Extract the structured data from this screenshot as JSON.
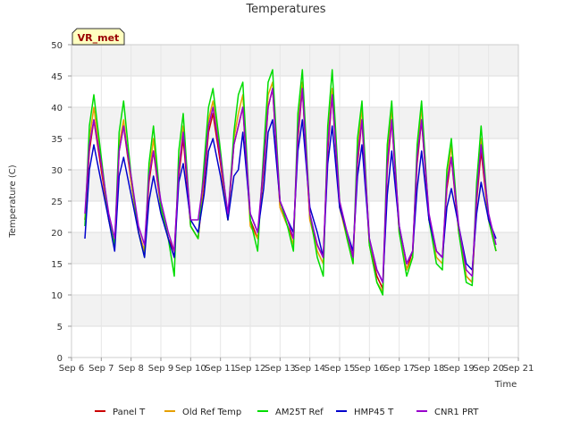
{
  "chart_data": {
    "type": "line",
    "title": "Temperatures",
    "xlabel": "Time",
    "ylabel": "Temperature (C)",
    "ylim": [
      0,
      50
    ],
    "yticks": [
      0,
      5,
      10,
      15,
      20,
      25,
      30,
      35,
      40,
      45,
      50
    ],
    "xlim": [
      6,
      21
    ],
    "xticks": [
      {
        "value": 6,
        "label": "Sep 6"
      },
      {
        "value": 7,
        "label": "Sep 7"
      },
      {
        "value": 8,
        "label": "Sep 8"
      },
      {
        "value": 9,
        "label": "Sep 9"
      },
      {
        "value": 10,
        "label": "Sep 10"
      },
      {
        "value": 11,
        "label": "Sep 11"
      },
      {
        "value": 12,
        "label": "Sep 12"
      },
      {
        "value": 13,
        "label": "Sep 13"
      },
      {
        "value": 14,
        "label": "Sep 14"
      },
      {
        "value": 15,
        "label": "Sep 15"
      },
      {
        "value": 16,
        "label": "Sep 16"
      },
      {
        "value": 17,
        "label": "Sep 17"
      },
      {
        "value": 18,
        "label": "Sep 18"
      },
      {
        "value": 19,
        "label": "Sep 19"
      },
      {
        "value": 20,
        "label": "Sep 20"
      },
      {
        "value": 21,
        "label": "Sep 21"
      }
    ],
    "background_bands": true,
    "legend_position": "bottom",
    "annotation": "VR_met",
    "x": [
      6.45,
      6.6,
      6.75,
      7.0,
      7.25,
      7.45,
      7.6,
      7.75,
      8.0,
      8.25,
      8.45,
      8.6,
      8.75,
      9.0,
      9.25,
      9.45,
      9.6,
      9.75,
      10.0,
      10.25,
      10.45,
      10.6,
      10.75,
      11.0,
      11.25,
      11.45,
      11.6,
      11.75,
      12.0,
      12.25,
      12.45,
      12.6,
      12.75,
      13.0,
      13.25,
      13.45,
      13.6,
      13.75,
      14.0,
      14.25,
      14.45,
      14.6,
      14.75,
      15.0,
      15.25,
      15.45,
      15.6,
      15.75,
      16.0,
      16.25,
      16.45,
      16.6,
      16.75,
      17.0,
      17.25,
      17.45,
      17.6,
      17.75,
      18.0,
      18.25,
      18.45,
      18.6,
      18.75,
      19.0,
      19.25,
      19.45,
      19.6,
      19.75,
      20.0,
      20.25
    ],
    "series": [
      {
        "name": "Panel T",
        "color": "#cc0000",
        "values": [
          22,
          33,
          38,
          30,
          22,
          18,
          33,
          37,
          28,
          20,
          17,
          28,
          33,
          24,
          19,
          17,
          29,
          35,
          21,
          19,
          28,
          36,
          39,
          31,
          22,
          34,
          37,
          40,
          22,
          19,
          30,
          40,
          43,
          24,
          21,
          19,
          35,
          43,
          22,
          18,
          16,
          33,
          42,
          24,
          20,
          16,
          31,
          38,
          18,
          13,
          11,
          30,
          38,
          20,
          14,
          17,
          31,
          38,
          22,
          17,
          16,
          27,
          32,
          20,
          13,
          12,
          25,
          33,
          22,
          17
        ]
      },
      {
        "name": "Old Ref Temp",
        "color": "#e6a000",
        "values": [
          22,
          35,
          40,
          31,
          22,
          17.5,
          34,
          38,
          28,
          20,
          17,
          29,
          35,
          24,
          19,
          16,
          30,
          37,
          21,
          19,
          29,
          38,
          41,
          32,
          22,
          35,
          39,
          42,
          21,
          19,
          31,
          42,
          44,
          24,
          21,
          18,
          37,
          44,
          22,
          17,
          15,
          35,
          43,
          24,
          19,
          15,
          33,
          40,
          18,
          12,
          10.5,
          32,
          40,
          20,
          14,
          16,
          33,
          40,
          22,
          16,
          15,
          28,
          34,
          20,
          13,
          12,
          26,
          35,
          22,
          17
        ]
      },
      {
        "name": "AM25T Ref",
        "color": "#00dd00",
        "values": [
          21,
          37,
          42,
          32,
          22,
          18,
          36,
          41,
          29,
          20,
          16,
          31,
          37,
          24,
          19,
          13,
          33,
          39,
          21,
          19,
          31,
          40,
          43,
          33,
          22,
          36,
          42,
          44,
          22,
          17,
          33,
          44,
          46,
          25,
          21,
          17,
          39,
          46,
          23,
          16,
          13,
          37,
          46,
          25,
          19,
          15,
          35,
          41,
          18,
          12,
          10,
          34,
          41,
          20,
          13,
          16,
          34,
          41,
          22,
          15,
          14,
          30,
          35,
          20,
          12,
          11.5,
          28,
          37,
          22,
          17
        ]
      },
      {
        "name": "HMP45 T",
        "color": "#0000cc",
        "values": [
          19,
          30,
          34,
          28,
          22,
          17,
          29,
          32,
          26,
          20,
          16,
          25,
          29,
          23,
          19,
          16,
          28,
          31,
          22,
          20,
          26,
          33,
          35,
          29,
          22,
          29,
          30,
          36,
          23,
          20,
          27,
          36,
          38,
          25,
          22,
          20,
          33,
          38,
          24,
          20,
          16,
          31,
          37,
          24,
          20,
          17,
          29,
          34,
          19,
          14,
          12,
          26,
          33,
          21,
          15,
          17,
          27,
          33,
          22,
          17,
          16,
          24,
          27,
          21,
          15,
          14,
          23,
          28,
          22,
          19
        ]
      },
      {
        "name": "CNR1 PRT",
        "color": "#9900cc",
        "values": [
          23,
          34,
          38,
          31,
          23,
          19,
          33,
          37,
          29,
          21,
          18,
          29,
          33,
          25,
          20,
          17,
          30,
          36,
          22,
          22,
          29,
          37,
          40,
          32,
          23,
          34,
          37,
          40,
          23,
          20,
          31,
          40,
          43,
          25,
          22,
          19,
          36,
          43,
          23,
          18,
          16,
          34,
          42,
          25,
          20,
          16,
          32,
          38,
          19,
          14,
          12,
          31,
          38,
          21,
          15,
          17,
          32,
          38,
          23,
          17,
          16,
          28,
          32,
          21,
          14,
          13,
          26,
          34,
          23,
          18
        ]
      }
    ]
  }
}
